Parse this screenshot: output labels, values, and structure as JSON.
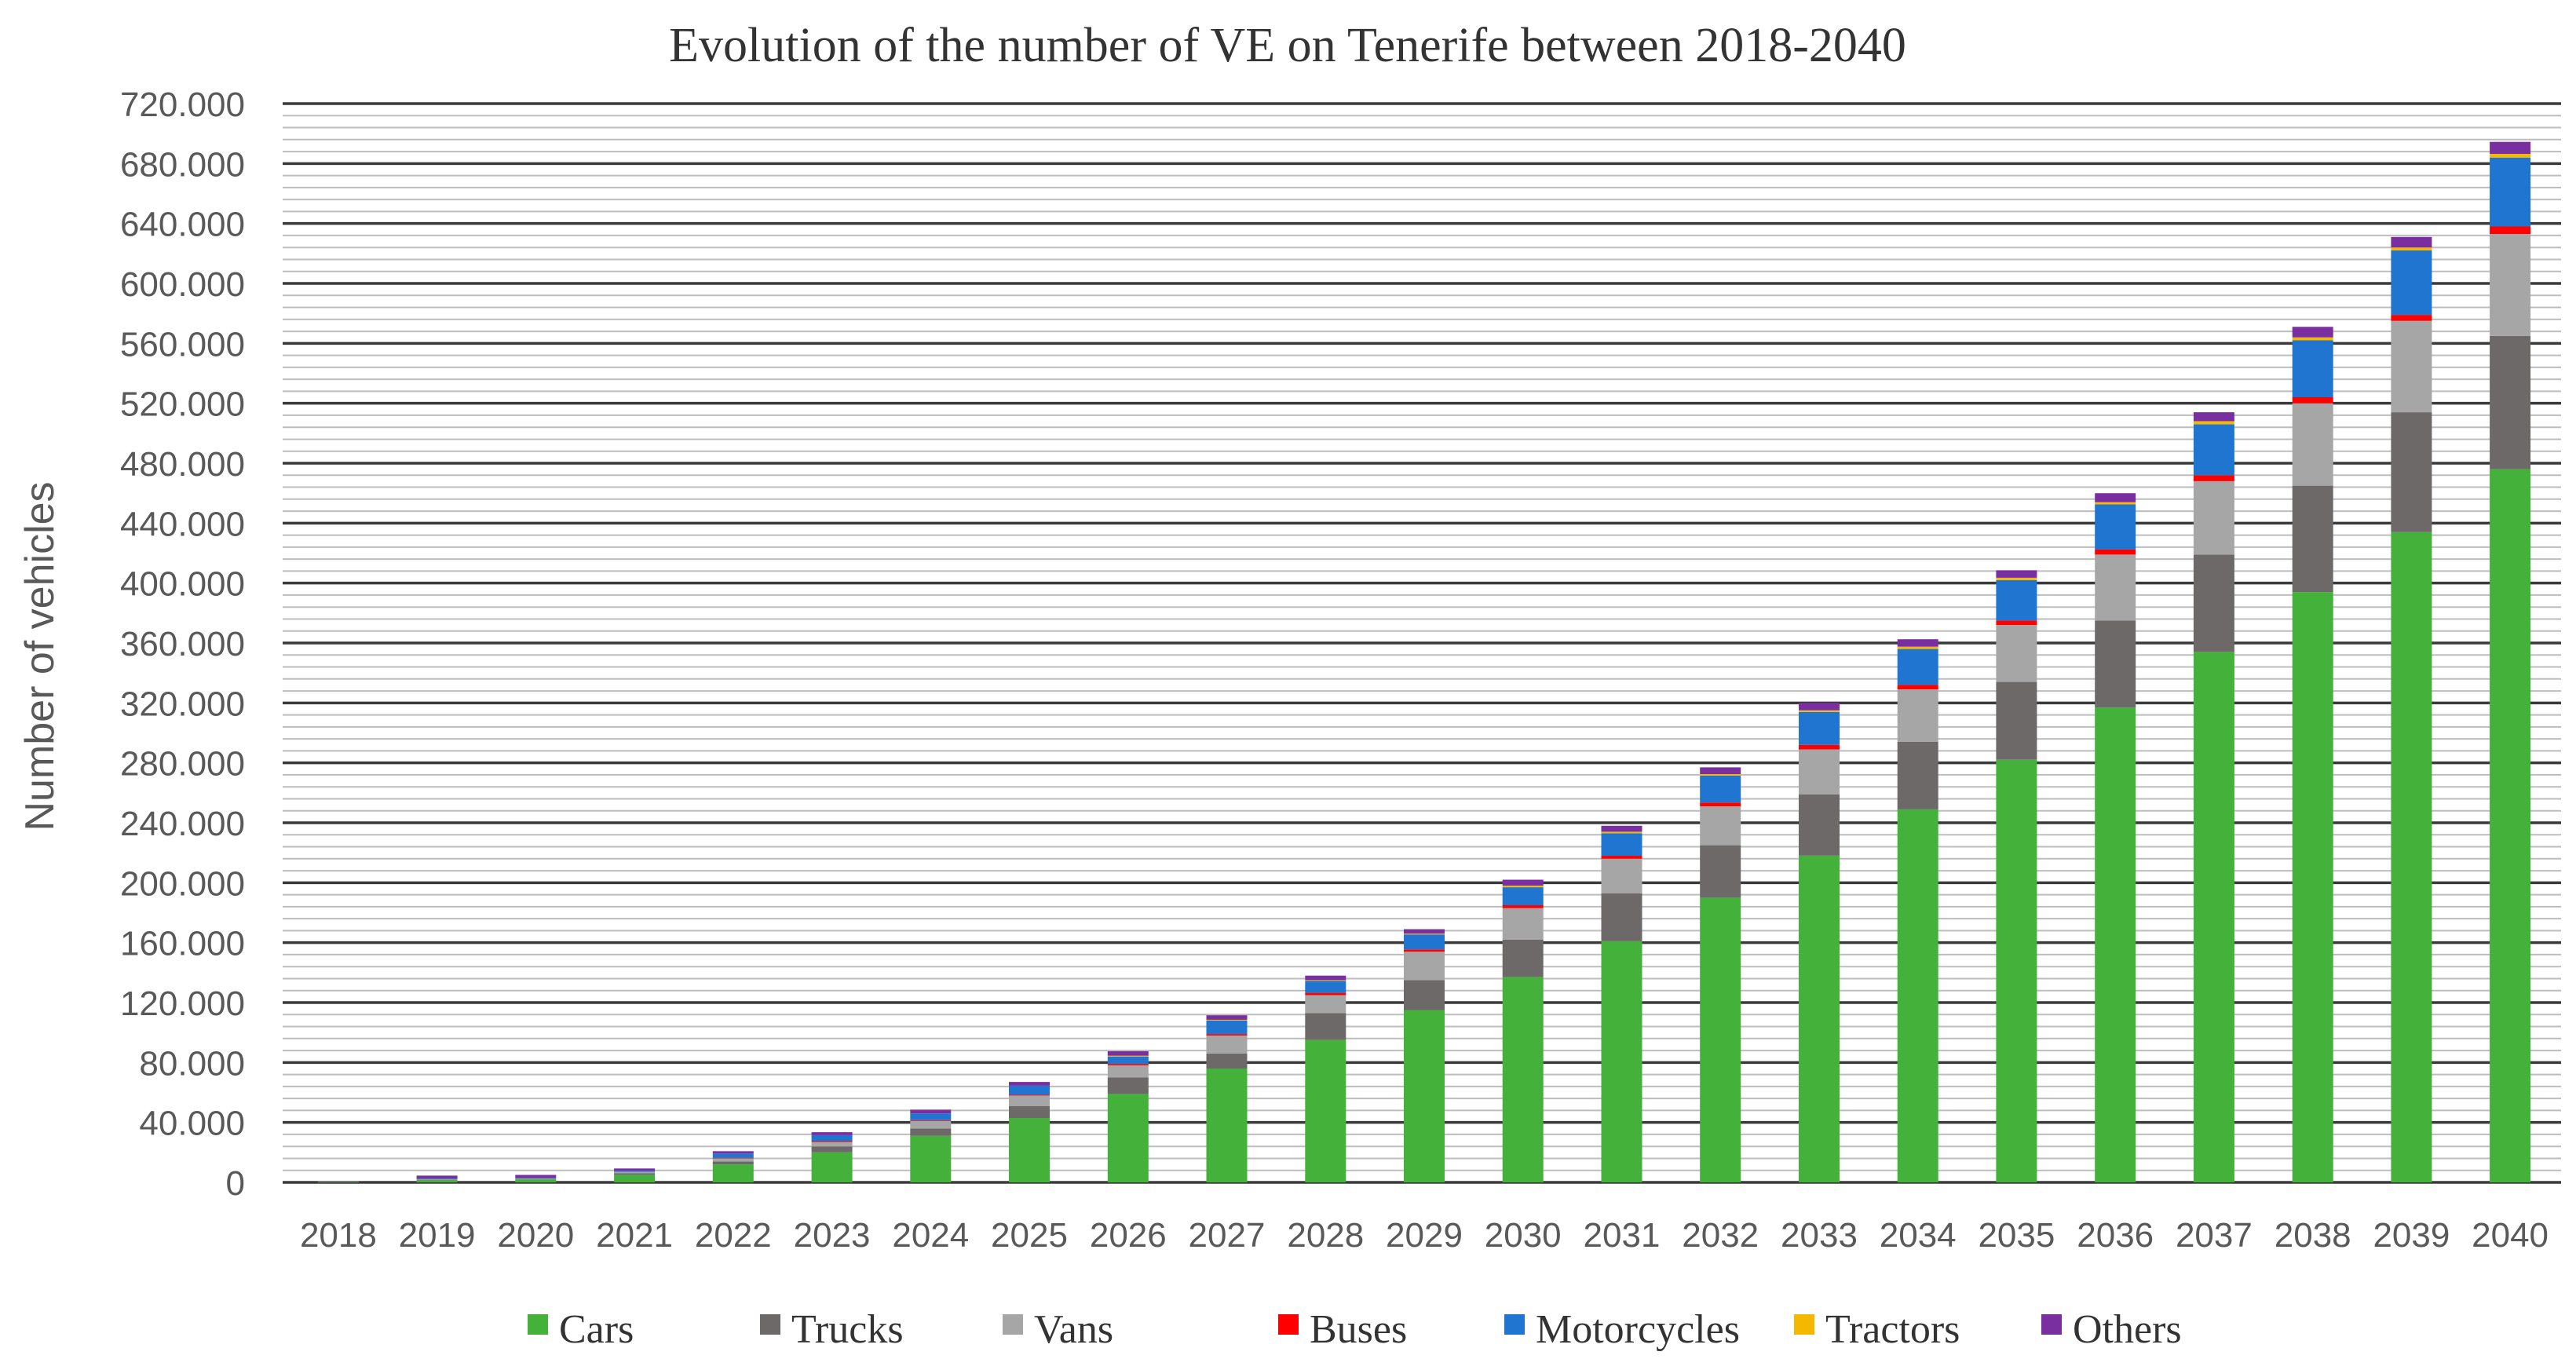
{
  "chart_data": {
    "type": "bar",
    "stacked": true,
    "title": "Evolution of the number of VE on Tenerife between 2018-2040",
    "xlabel": "",
    "ylabel": "Number of vehicles",
    "ylim": [
      0,
      720000
    ],
    "y_tick_values": [
      0,
      40000,
      80000,
      120000,
      160000,
      200000,
      240000,
      280000,
      320000,
      360000,
      400000,
      440000,
      480000,
      520000,
      560000,
      600000,
      640000,
      680000,
      720000
    ],
    "y_tick_labels": [
      "0",
      "40.000",
      "80.000",
      "120.000",
      "160.000",
      "200.000",
      "240.000",
      "280.000",
      "320.000",
      "360.000",
      "400.000",
      "440.000",
      "480.000",
      "520.000",
      "560.000",
      "600.000",
      "640.000",
      "680.000",
      "720.000"
    ],
    "grid": true,
    "legend_position": "bottom",
    "categories": [
      "2018",
      "2019",
      "2020",
      "2021",
      "2022",
      "2023",
      "2024",
      "2025",
      "2026",
      "2027",
      "2028",
      "2029",
      "2030",
      "2031",
      "2032",
      "2033",
      "2034",
      "2035",
      "2036",
      "2037",
      "2038",
      "2039",
      "2040"
    ],
    "series": [
      {
        "name": "Cars",
        "color": "#43b13a",
        "values": [
          300,
          1500,
          2000,
          5000,
          12000,
          20000,
          31000,
          43000,
          59000,
          76000,
          95000,
          115000,
          137000,
          161000,
          190000,
          218000,
          249000,
          282000,
          317000,
          354000,
          394000,
          434000,
          476000
        ]
      },
      {
        "name": "Trucks",
        "color": "#6d6969",
        "values": [
          100,
          300,
          300,
          1000,
          2000,
          4000,
          5000,
          8000,
          11000,
          10000,
          18000,
          20000,
          25000,
          32000,
          35000,
          41000,
          45000,
          52000,
          58000,
          65000,
          71000,
          80000,
          89000
        ]
      },
      {
        "name": "Vans",
        "color": "#a6a6a6",
        "values": [
          100,
          300,
          300,
          1000,
          2000,
          3000,
          5000,
          7000,
          8000,
          12000,
          12000,
          19000,
          21000,
          23000,
          26000,
          30000,
          35000,
          38000,
          44000,
          49000,
          55000,
          61000,
          68000
        ]
      },
      {
        "name": "Buses",
        "color": "#ff0000",
        "values": [
          0,
          0,
          0,
          0,
          300,
          500,
          500,
          500,
          1000,
          1000,
          1500,
          1500,
          2000,
          2000,
          2500,
          3000,
          3000,
          3000,
          3500,
          4000,
          4000,
          4000,
          5000
        ]
      },
      {
        "name": "Motorcycles",
        "color": "#1f75cf",
        "values": [
          0,
          400,
          400,
          800,
          3000,
          4000,
          4500,
          6000,
          5000,
          9000,
          8000,
          10000,
          12000,
          15000,
          18000,
          22000,
          24000,
          27000,
          30000,
          34000,
          38000,
          43000,
          46000
        ]
      },
      {
        "name": "Tractors",
        "color": "#f5b800",
        "values": [
          0,
          0,
          0,
          0,
          0,
          0,
          0,
          0,
          500,
          500,
          500,
          500,
          1000,
          1000,
          1000,
          1000,
          1500,
          1500,
          1500,
          2000,
          2000,
          2000,
          2500
        ]
      },
      {
        "name": "Others",
        "color": "#7a2fa0",
        "values": [
          0,
          2000,
          2000,
          1500,
          1500,
          2000,
          2500,
          2500,
          3000,
          3000,
          3000,
          3000,
          4000,
          4000,
          4500,
          5000,
          5000,
          5000,
          6000,
          6000,
          7000,
          7000,
          8000
        ]
      }
    ]
  }
}
